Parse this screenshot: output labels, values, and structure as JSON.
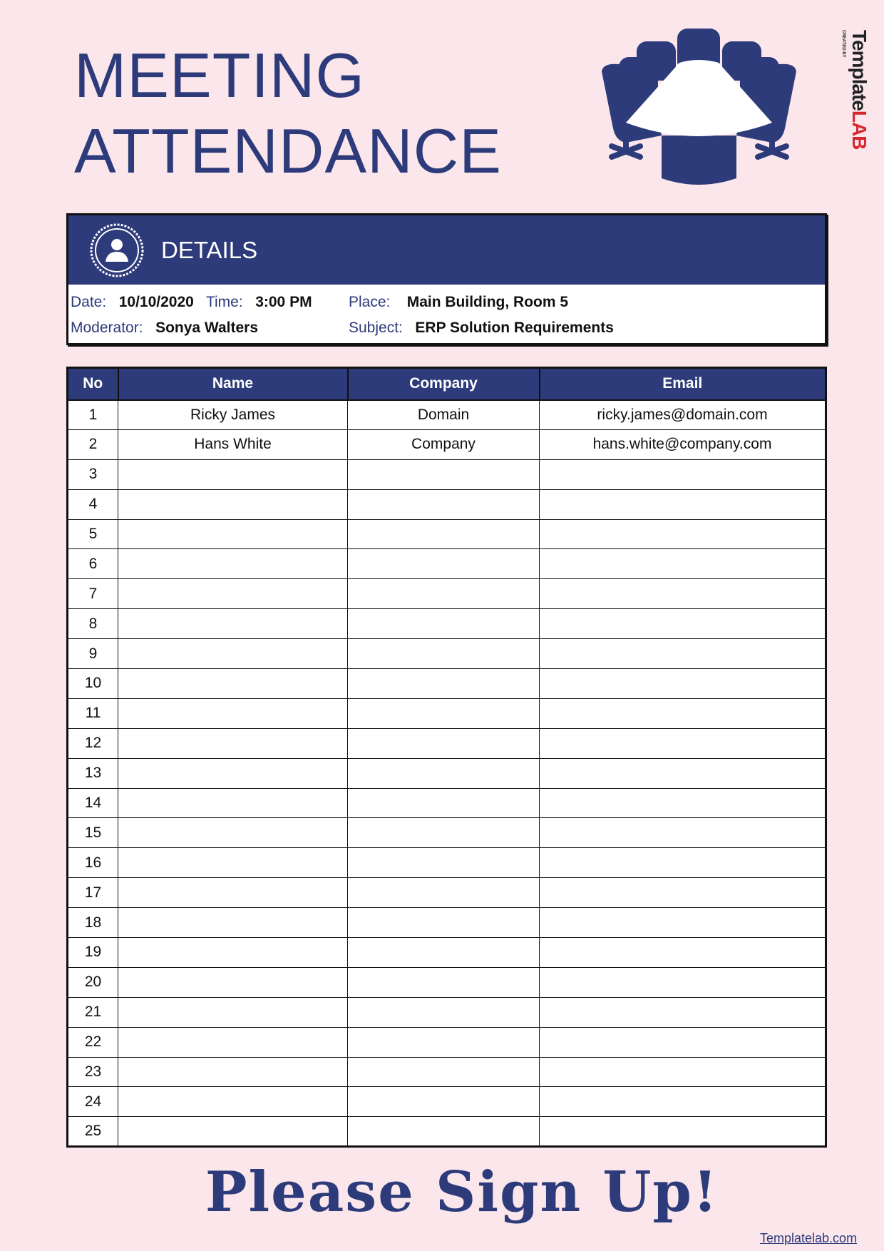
{
  "title": {
    "line1": "MEETING",
    "line2": "ATTENDANCE"
  },
  "brand": {
    "created_by": "CREATED BY",
    "name_part1": "Template",
    "name_part2": "LAB"
  },
  "details": {
    "heading": "DETAILS",
    "date_label": "Date:",
    "date": "10/10/2020",
    "time_label": "Time:",
    "time": "3:00 PM",
    "place_label": "Place:",
    "place": "Main Building, Room 5",
    "moderator_label": "Moderator:",
    "moderator": "Sonya Walters",
    "subject_label": "Subject:",
    "subject": "ERP Solution Requirements"
  },
  "table": {
    "headers": [
      "No",
      "Name",
      "Company",
      "Email"
    ],
    "rows": [
      {
        "no": "1",
        "name": "Ricky James",
        "company": "Domain",
        "email": "ricky.james@domain.com"
      },
      {
        "no": "2",
        "name": "Hans White",
        "company": "Company",
        "email": "hans.white@company.com"
      },
      {
        "no": "3"
      },
      {
        "no": "4"
      },
      {
        "no": "5"
      },
      {
        "no": "6"
      },
      {
        "no": "7"
      },
      {
        "no": "8"
      },
      {
        "no": "9"
      },
      {
        "no": "10"
      },
      {
        "no": "11"
      },
      {
        "no": "12"
      },
      {
        "no": "13"
      },
      {
        "no": "14"
      },
      {
        "no": "15"
      },
      {
        "no": "16"
      },
      {
        "no": "17"
      },
      {
        "no": "18"
      },
      {
        "no": "19"
      },
      {
        "no": "20"
      },
      {
        "no": "21"
      },
      {
        "no": "22"
      },
      {
        "no": "23"
      },
      {
        "no": "24"
      },
      {
        "no": "25"
      }
    ]
  },
  "footer": {
    "signup": "Please Sign Up!",
    "link": "Templatelab.com"
  },
  "colors": {
    "primary": "#2e3b7b",
    "background": "#fbe7eb",
    "brand_red": "#d8262e"
  }
}
